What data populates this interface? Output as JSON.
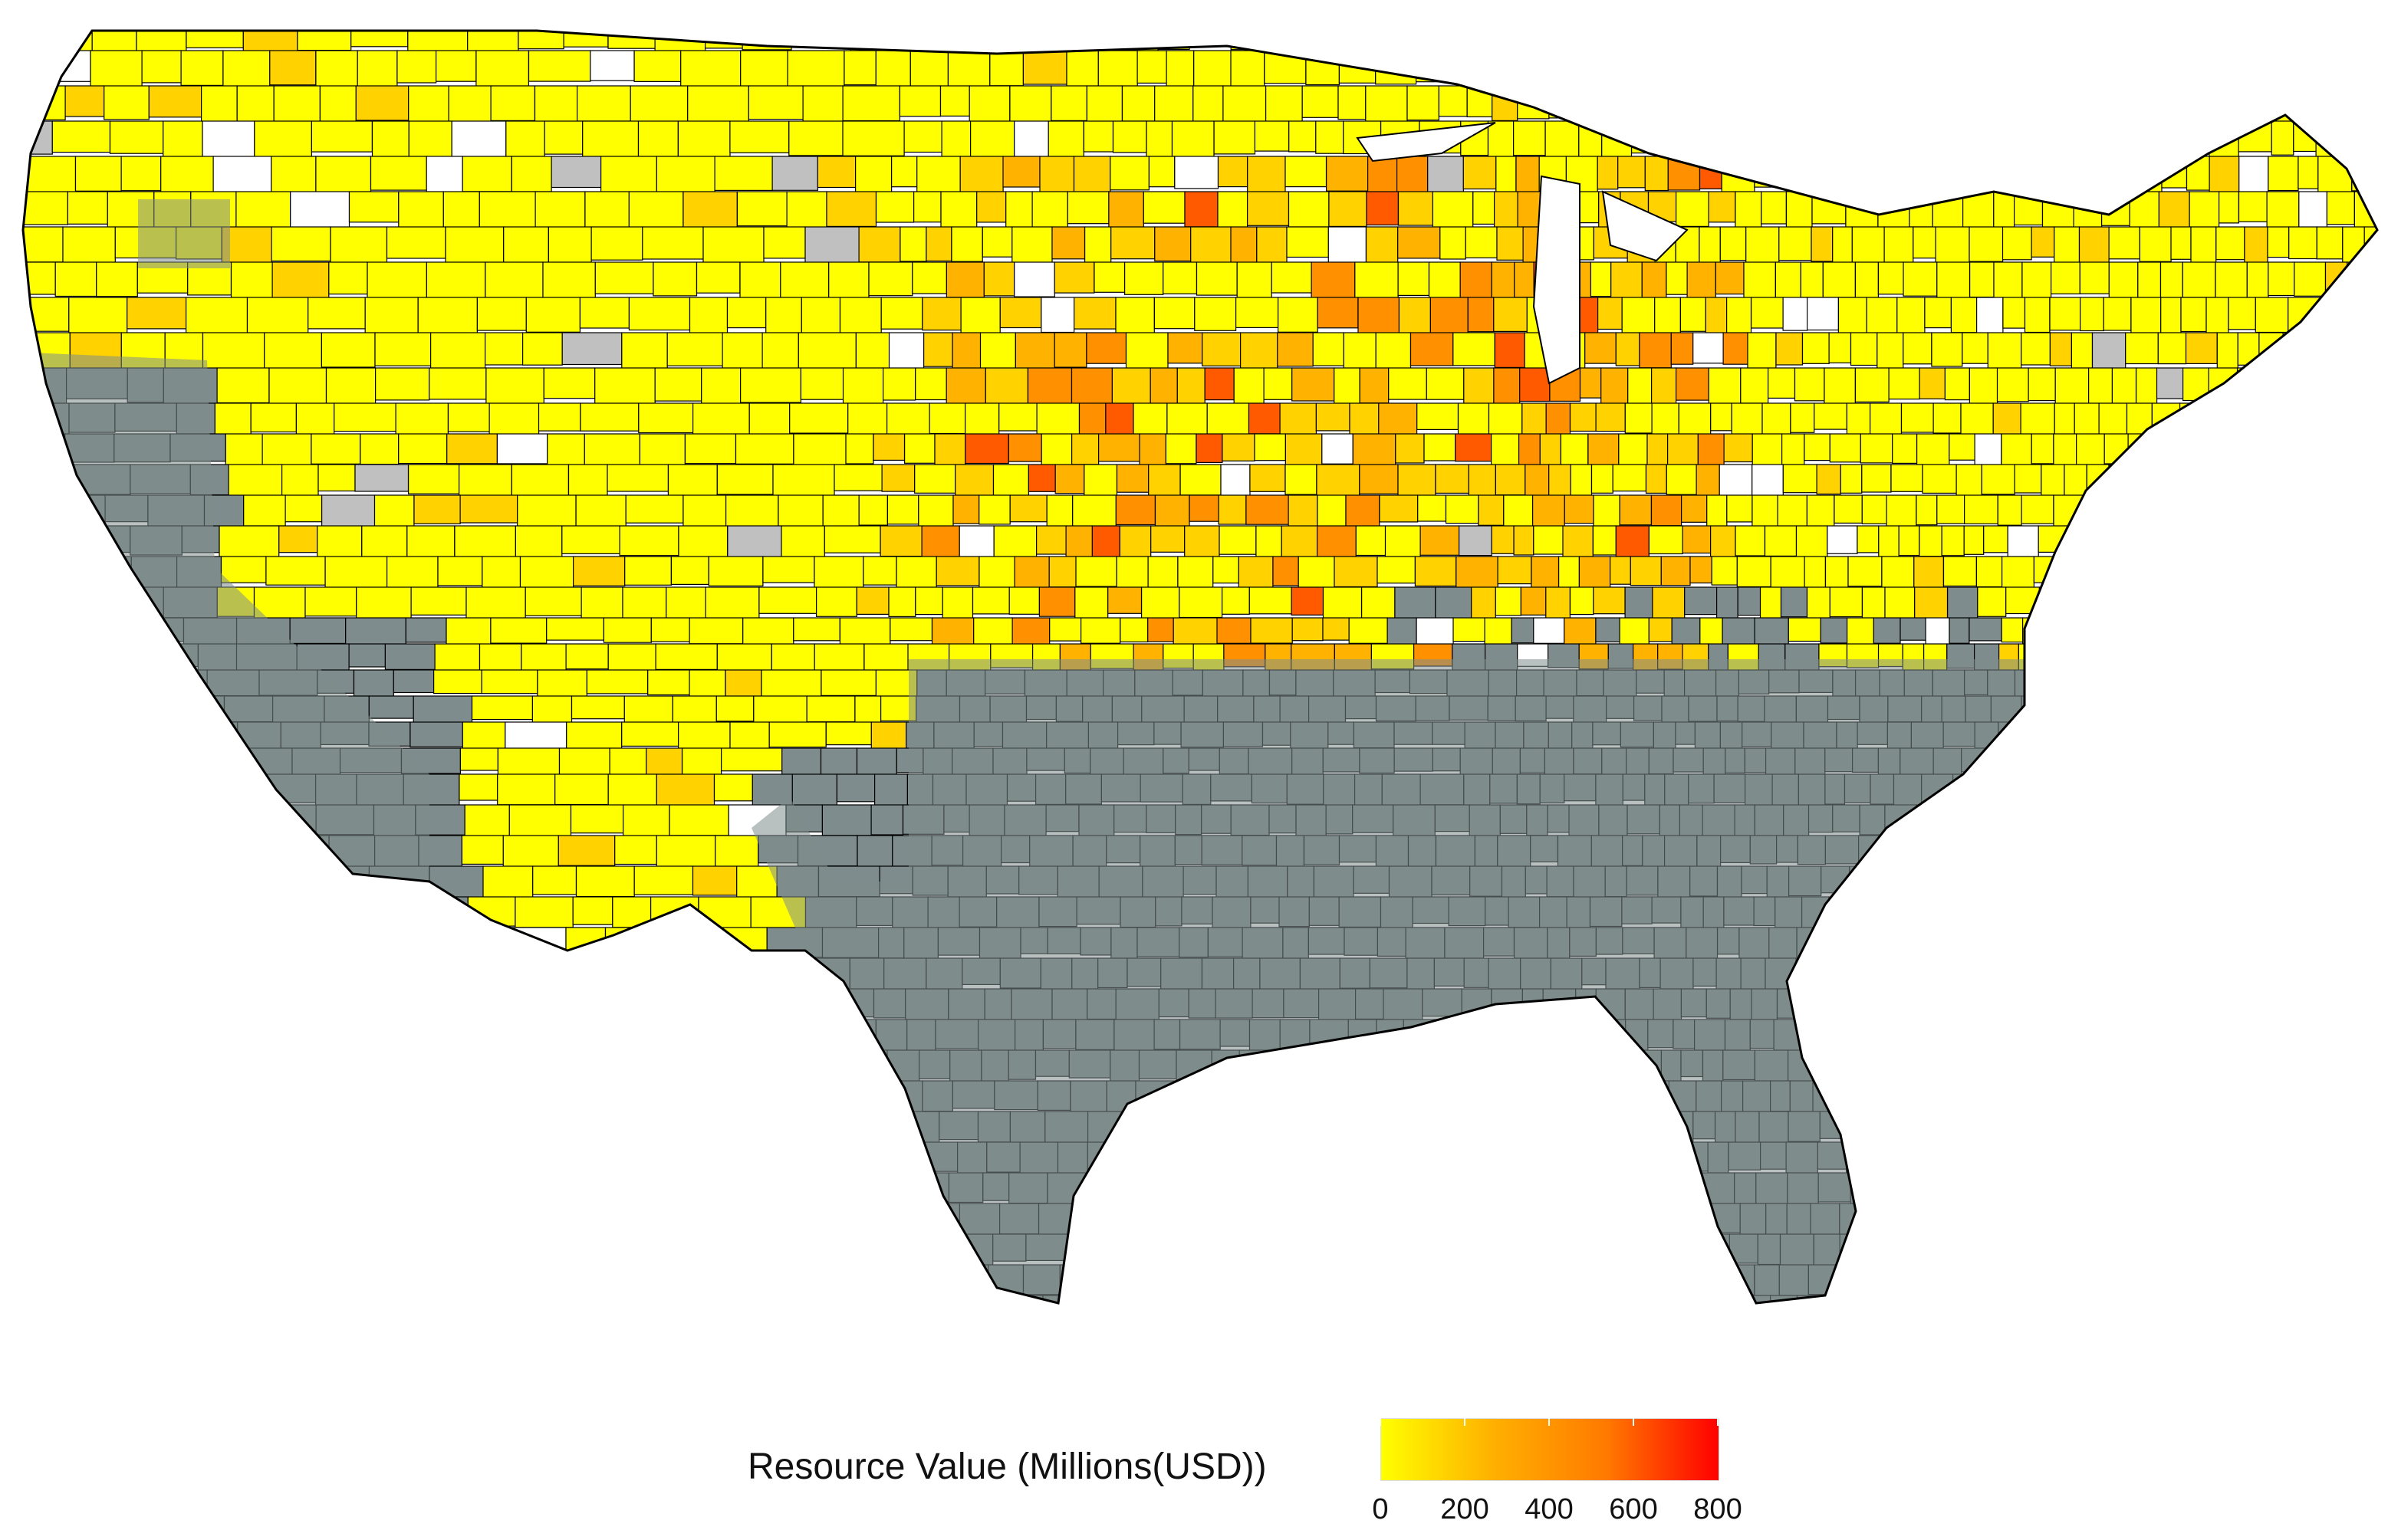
{
  "map": {
    "fill_colors": {
      "no_data_region": "#7f8c8d",
      "missing": "#c0c0c0",
      "empty": "#ffffff",
      "low": "#ffff00",
      "mid_low": "#ffd200",
      "mid": "#ffb300",
      "mid_high": "#ff9000",
      "high": "#ff5a00",
      "max": "#ff0000"
    },
    "border_color": "#000000"
  },
  "legend": {
    "title": "Resource Value (Millions(USD))",
    "scale": {
      "min": 0,
      "max": 800,
      "gradient_start": "#ffff00",
      "gradient_end": "#ff0000"
    },
    "ticks": [
      {
        "value": 0,
        "label": "0"
      },
      {
        "value": 200,
        "label": "200"
      },
      {
        "value": 400,
        "label": "400"
      },
      {
        "value": 600,
        "label": "600"
      },
      {
        "value": 800,
        "label": "800"
      }
    ]
  }
}
